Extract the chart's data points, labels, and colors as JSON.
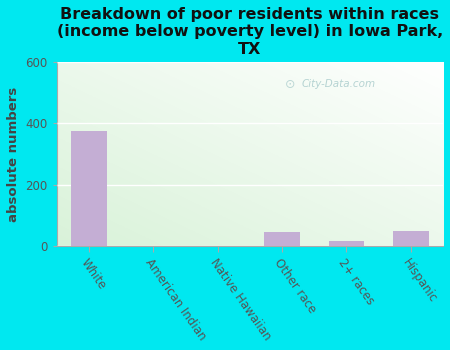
{
  "title": "Breakdown of poor residents within races\n(income below poverty level) in Iowa Park,\nTX",
  "categories": [
    "White",
    "American Indian",
    "Native Hawaiian",
    "Other race",
    "2+ races",
    "Hispanic"
  ],
  "values": [
    375,
    0,
    0,
    45,
    18,
    50
  ],
  "bar_color": "#c4aed4",
  "ylabel": "absolute numbers",
  "ylim": [
    0,
    600
  ],
  "yticks": [
    0,
    200,
    400,
    600
  ],
  "background_outer": "#00e8f0",
  "watermark": "City-Data.com",
  "title_fontsize": 11.5,
  "ylabel_fontsize": 9.5,
  "tick_fontsize": 8.5,
  "grad_colors": [
    "#c8edc8",
    "#f5fdf5",
    "#ffffff"
  ],
  "grid_color": "#ffffff",
  "spine_color": "#aaaaaa"
}
